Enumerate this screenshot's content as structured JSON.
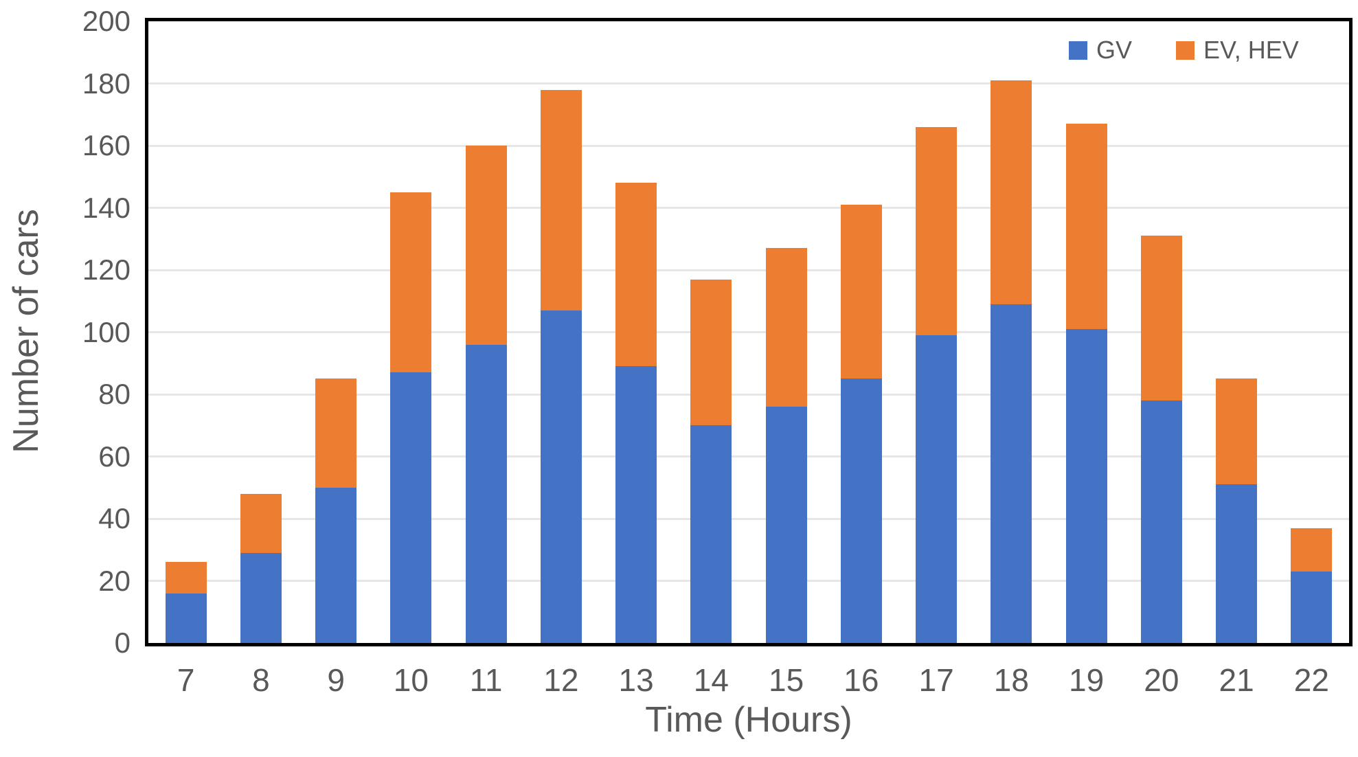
{
  "chart_data": {
    "type": "bar",
    "stacked": true,
    "title": "",
    "xlabel": "Time (Hours)",
    "ylabel": "Number of cars",
    "categories": [
      "7",
      "8",
      "9",
      "10",
      "11",
      "12",
      "13",
      "14",
      "15",
      "16",
      "17",
      "18",
      "19",
      "20",
      "21",
      "22"
    ],
    "series": [
      {
        "name": "GV",
        "color": "#4472C4",
        "values": [
          16,
          29,
          50,
          87,
          96,
          107,
          89,
          70,
          76,
          85,
          99,
          109,
          101,
          78,
          51,
          23
        ]
      },
      {
        "name": "EV, HEV",
        "color": "#ED7D31",
        "values": [
          10,
          19,
          35,
          58,
          64,
          71,
          59,
          47,
          51,
          56,
          67,
          72,
          66,
          53,
          34,
          14
        ]
      }
    ],
    "stack_totals": [
      26,
      48,
      85,
      145,
      160,
      178,
      148,
      117,
      127,
      141,
      166,
      181,
      167,
      131,
      85,
      37
    ],
    "ylim": [
      0,
      200
    ],
    "ytick_step": 20,
    "yticks": [
      "0",
      "20",
      "40",
      "60",
      "80",
      "100",
      "120",
      "140",
      "160",
      "180",
      "200"
    ],
    "grid": true,
    "legend_position": "top-right",
    "colors": {
      "axis_line": "#000000",
      "gridline": "#e6e6e6",
      "tick_text": "#595959",
      "gv": "#4472C4",
      "ev_hev": "#ED7D31"
    }
  }
}
